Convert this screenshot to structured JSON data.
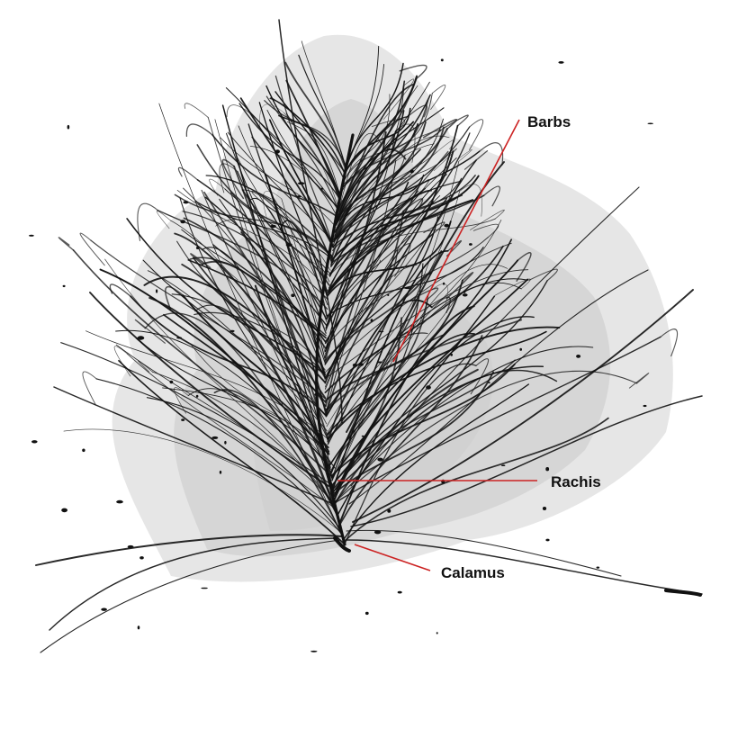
{
  "diagram": {
    "subject": "feather",
    "labels": [
      {
        "id": "barbs",
        "text": "Barbs"
      },
      {
        "id": "rachis",
        "text": "Rachis"
      },
      {
        "id": "calamus",
        "text": "Calamus"
      }
    ]
  },
  "colors": {
    "leader_line": "#cc2222",
    "ink": "#111111",
    "shadow": "#d9d9d9",
    "shadow_light": "#e9e9e9",
    "background": "#ffffff"
  },
  "icons": {
    "feather": "feather-illustration"
  }
}
